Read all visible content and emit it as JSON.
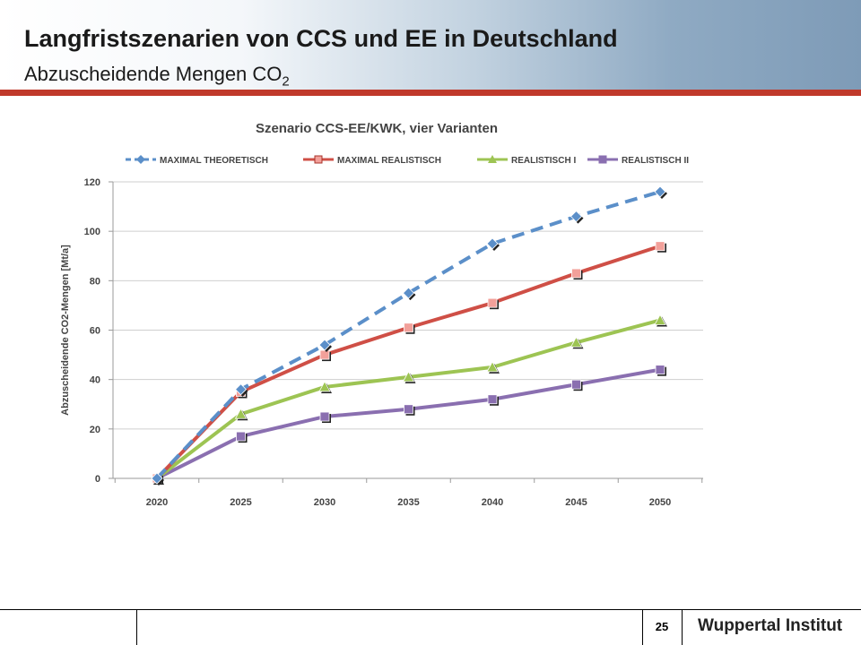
{
  "header": {
    "title": "Langfristszenarien von CCS und EE in Deutschland",
    "subtitle_main": "Abzuscheidende Mengen CO",
    "subtitle_sub": "2",
    "accent_color": "#c0392b"
  },
  "footer": {
    "page_number": "25",
    "brand": "Wuppertal Institut"
  },
  "chart_data": {
    "type": "line",
    "title": "Szenario CCS-EE/KWK, vier Varianten",
    "xlabel": "",
    "ylabel": "Abzuscheidende CO2-Mengen [Mt/a]",
    "categories": [
      "2020",
      "2025",
      "2030",
      "2035",
      "2040",
      "2045",
      "2050"
    ],
    "ylim": [
      0,
      120
    ],
    "yticks": [
      0,
      20,
      40,
      60,
      80,
      100,
      120
    ],
    "grid": true,
    "legend_position": "top",
    "series": [
      {
        "name": "MAXIMAL THEORETISCH",
        "values": [
          0,
          36,
          54,
          75,
          95,
          106,
          116
        ],
        "color": "#5b8fc9",
        "marker": "diamond",
        "dashed": true
      },
      {
        "name": "MAXIMAL REALISTISCH",
        "values": [
          0,
          35,
          50,
          61,
          71,
          83,
          94
        ],
        "color": "#cf4f46",
        "marker": "square",
        "dashed": false
      },
      {
        "name": "REALISTISCH I",
        "values": [
          0,
          26,
          37,
          41,
          45,
          55,
          64
        ],
        "color": "#9dc453",
        "marker": "triangle",
        "dashed": false
      },
      {
        "name": "REALISTISCH II",
        "values": [
          0,
          17,
          25,
          28,
          32,
          38,
          44
        ],
        "color": "#8a6fb0",
        "marker": "square",
        "dashed": false
      }
    ]
  }
}
